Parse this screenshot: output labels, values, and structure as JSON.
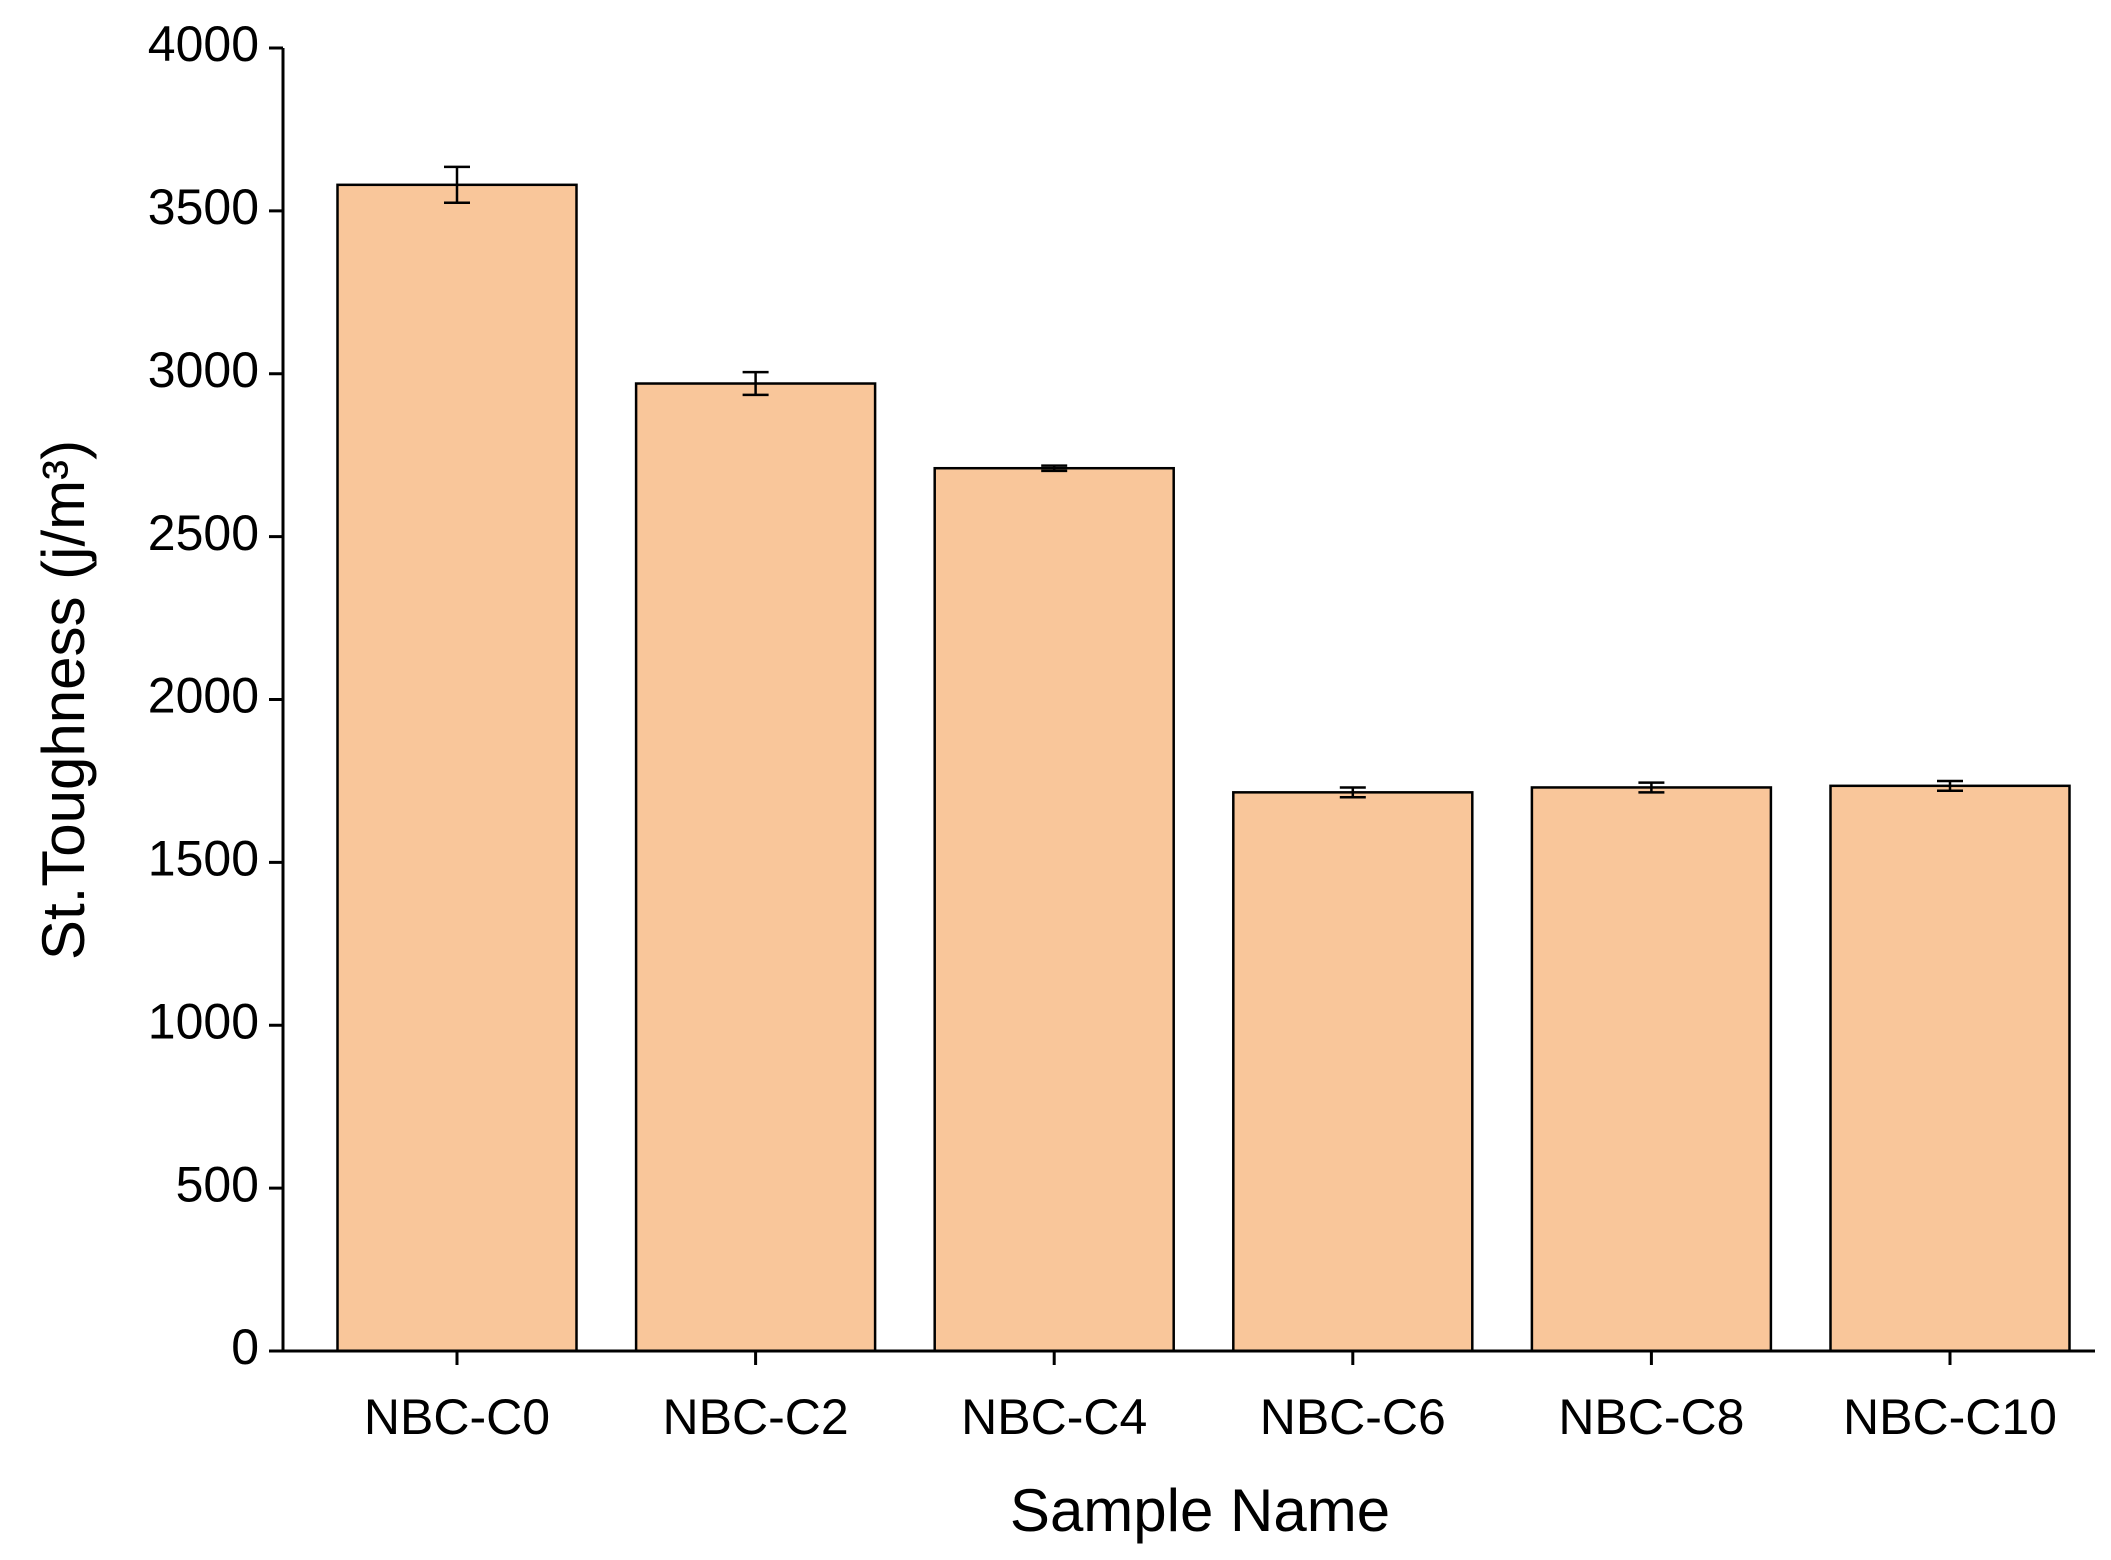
{
  "chart_data": {
    "type": "bar",
    "x_label": "Sample Name",
    "y_label": "St.Toughness (j/m³)",
    "categories": [
      "NBC-C0",
      "NBC-C2",
      "NBC-C4",
      "NBC-C6",
      "NBC-C8",
      "NBC-C10"
    ],
    "values": [
      3580,
      2970,
      2710,
      1715,
      1730,
      1735
    ],
    "errors": [
      55,
      35,
      8,
      15,
      15,
      15
    ],
    "color": "#f9c69a",
    "ylim": [
      0,
      4000
    ],
    "yticks": [
      0,
      500,
      1000,
      1500,
      2000,
      2500,
      3000,
      3500,
      4000
    ],
    "grid": false
  }
}
